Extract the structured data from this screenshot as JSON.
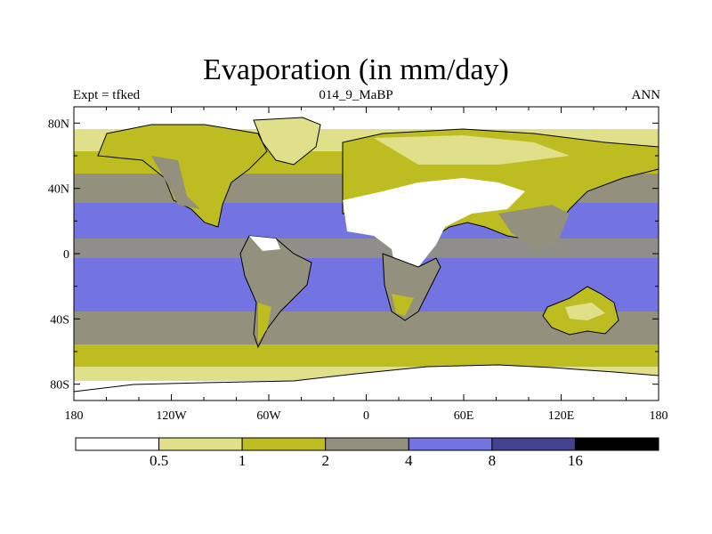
{
  "title": "Evaporation (in mm/day)",
  "left_string": "Expt = tfked",
  "center_string": "014_9_MaBP",
  "right_string": "ANN",
  "map": {
    "projection": "cylindrical equidistant",
    "lon_range": [
      -180,
      180
    ],
    "lat_range": [
      -90,
      90
    ],
    "lon_ticks": [
      {
        "value": -180,
        "label": "180"
      },
      {
        "value": -120,
        "label": "120W"
      },
      {
        "value": -60,
        "label": "60W"
      },
      {
        "value": 0,
        "label": "0"
      },
      {
        "value": 60,
        "label": "60E"
      },
      {
        "value": 120,
        "label": "120E"
      },
      {
        "value": 180,
        "label": "180"
      }
    ],
    "lat_ticks": [
      {
        "value": 80,
        "label": "80N"
      },
      {
        "value": 40,
        "label": "40N"
      },
      {
        "value": 0,
        "label": "0"
      },
      {
        "value": -40,
        "label": "40S"
      },
      {
        "value": -80,
        "label": "80S"
      }
    ]
  },
  "colorbar": {
    "levels": [
      "0.5",
      "1",
      "2",
      "4",
      "8",
      "16"
    ],
    "colors": [
      "#ffffff",
      "#e0e08a",
      "#bdbd22",
      "#93917e",
      "#7373e2",
      "#42428f",
      "#000000"
    ]
  }
}
